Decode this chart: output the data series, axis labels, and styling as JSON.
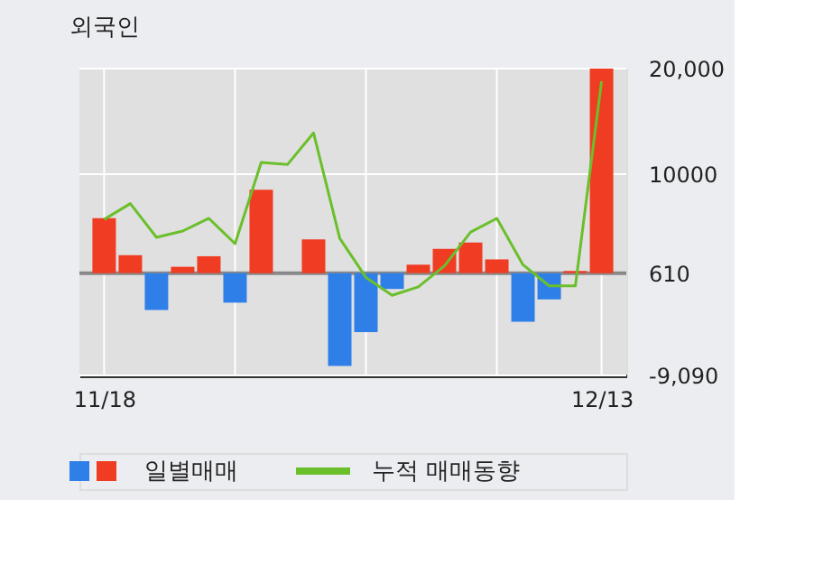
{
  "chart_data": {
    "type": "bar",
    "title": "외국인",
    "categories": [
      "11/18",
      null,
      null,
      null,
      null,
      null,
      null,
      null,
      null,
      null,
      null,
      null,
      null,
      null,
      null,
      null,
      null,
      null,
      null,
      "12/13"
    ],
    "series": [
      {
        "name": "일별매매",
        "values": [
          5200,
          1700,
          -3500,
          600,
          1600,
          -2800,
          7900,
          null,
          3200,
          -8800,
          -5600,
          -1500,
          800,
          2300,
          2900,
          1300,
          -4600,
          -2500,
          200,
          19400
        ],
        "base": [
          610,
          610,
          610,
          610,
          610,
          610,
          610,
          null,
          610,
          610,
          610,
          610,
          610,
          610,
          610,
          610,
          610,
          610,
          610,
          610
        ],
        "colors": [
          "#f03c23",
          "#f03c23",
          "#2f7fe8",
          "#f03c23",
          "#f03c23",
          "#2f7fe8",
          "#f03c23",
          "#f03c23",
          "#f03c23",
          "#2f7fe8",
          "#2f7fe8",
          "#2f7fe8",
          "#f03c23",
          "#f03c23",
          "#f03c23",
          "#f03c23",
          "#2f7fe8",
          "#2f7fe8",
          "#f03c23",
          "#f03c23"
        ]
      },
      {
        "name": "누적 매매동향",
        "type": "line",
        "color": "#6abf2a",
        "values": [
          5700,
          7200,
          4000,
          4600,
          5800,
          3400,
          11100,
          10900,
          13900,
          3900,
          200,
          -1500,
          -700,
          1300,
          4500,
          5800,
          1400,
          -600,
          -600,
          18800
        ]
      }
    ],
    "ylim": [
      -9090,
      20000
    ],
    "yticks": [
      {
        "value": 20000,
        "label": "20,000"
      },
      10000,
      610,
      {
        "value": -9090,
        "label": "-9,090"
      }
    ],
    "ref_lines": [
      {
        "axis": "y",
        "value": 610,
        "color": "#888888"
      }
    ],
    "grid": true,
    "legend": "bottom"
  }
}
